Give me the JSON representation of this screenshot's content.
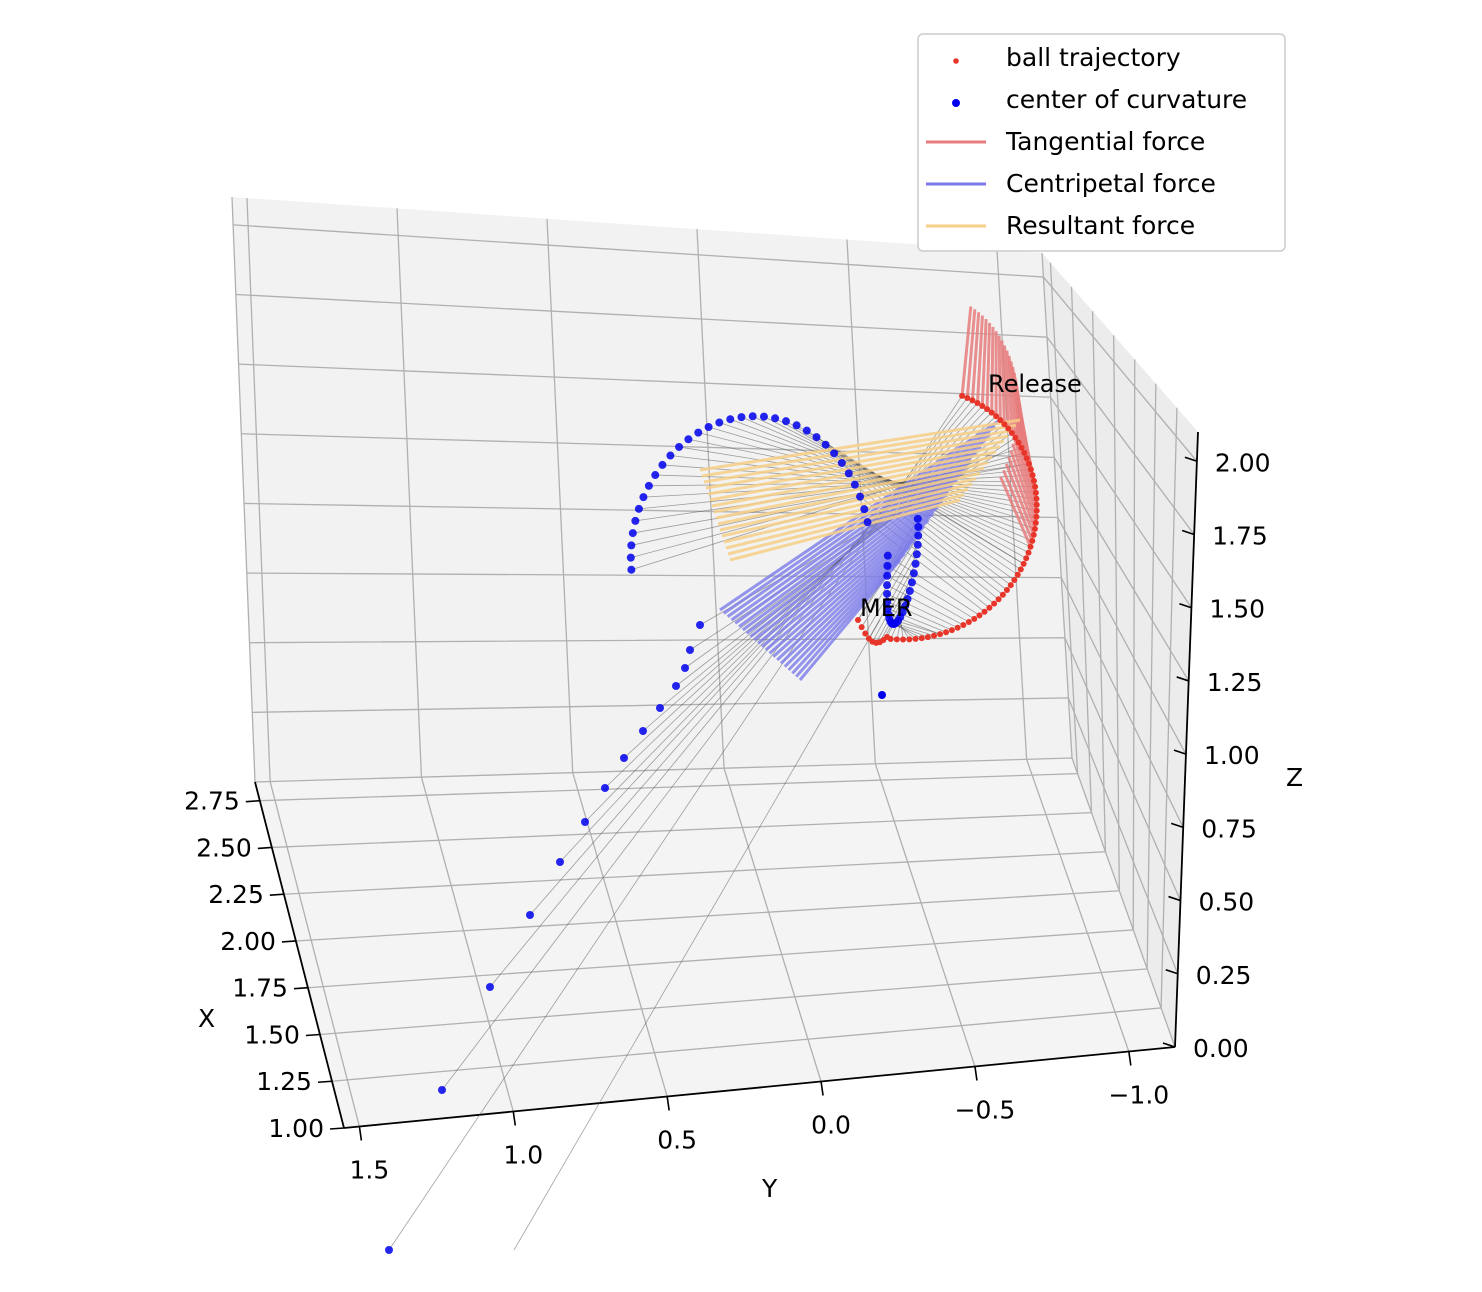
{
  "chart_data": {
    "type": "scatter3d",
    "title": "",
    "xlabel": "X",
    "ylabel": "Y",
    "zlabel": "Z",
    "x_ticks": [
      "1.00",
      "1.25",
      "1.50",
      "1.75",
      "2.00",
      "2.25",
      "2.50",
      "2.75"
    ],
    "y_ticks": [
      "1.5",
      "1.0",
      "0.5",
      "0.0",
      "−0.5",
      "−1.0"
    ],
    "z_ticks": [
      "0.00",
      "0.25",
      "0.50",
      "0.75",
      "1.00",
      "1.25",
      "1.50",
      "1.75",
      "2.00"
    ],
    "xlim": [
      1.0,
      2.85
    ],
    "ylim": [
      1.55,
      -1.15
    ],
    "zlim": [
      0.0,
      2.1
    ],
    "grid": true,
    "legend_position": "upper-right",
    "legend": [
      {
        "label": "ball trajectory",
        "kind": "marker",
        "color": "#e8352a"
      },
      {
        "label": "center of curvature",
        "kind": "marker",
        "color": "#0000ee"
      },
      {
        "label": "Tangential force",
        "kind": "line",
        "color": "#e87d7d"
      },
      {
        "label": "Centripetal force",
        "kind": "line",
        "color": "#7b7bea"
      },
      {
        "label": "Resultant force",
        "kind": "line",
        "color": "#f7cf86"
      }
    ],
    "annotations": [
      "Release",
      "MER"
    ],
    "colors": {
      "trajectory": "#e8352a",
      "curvature": "#0000ee",
      "tangential": "#e87d7d",
      "centripetal": "#7b7bea",
      "resultant": "#f7cf86",
      "connector": "#555555"
    }
  }
}
